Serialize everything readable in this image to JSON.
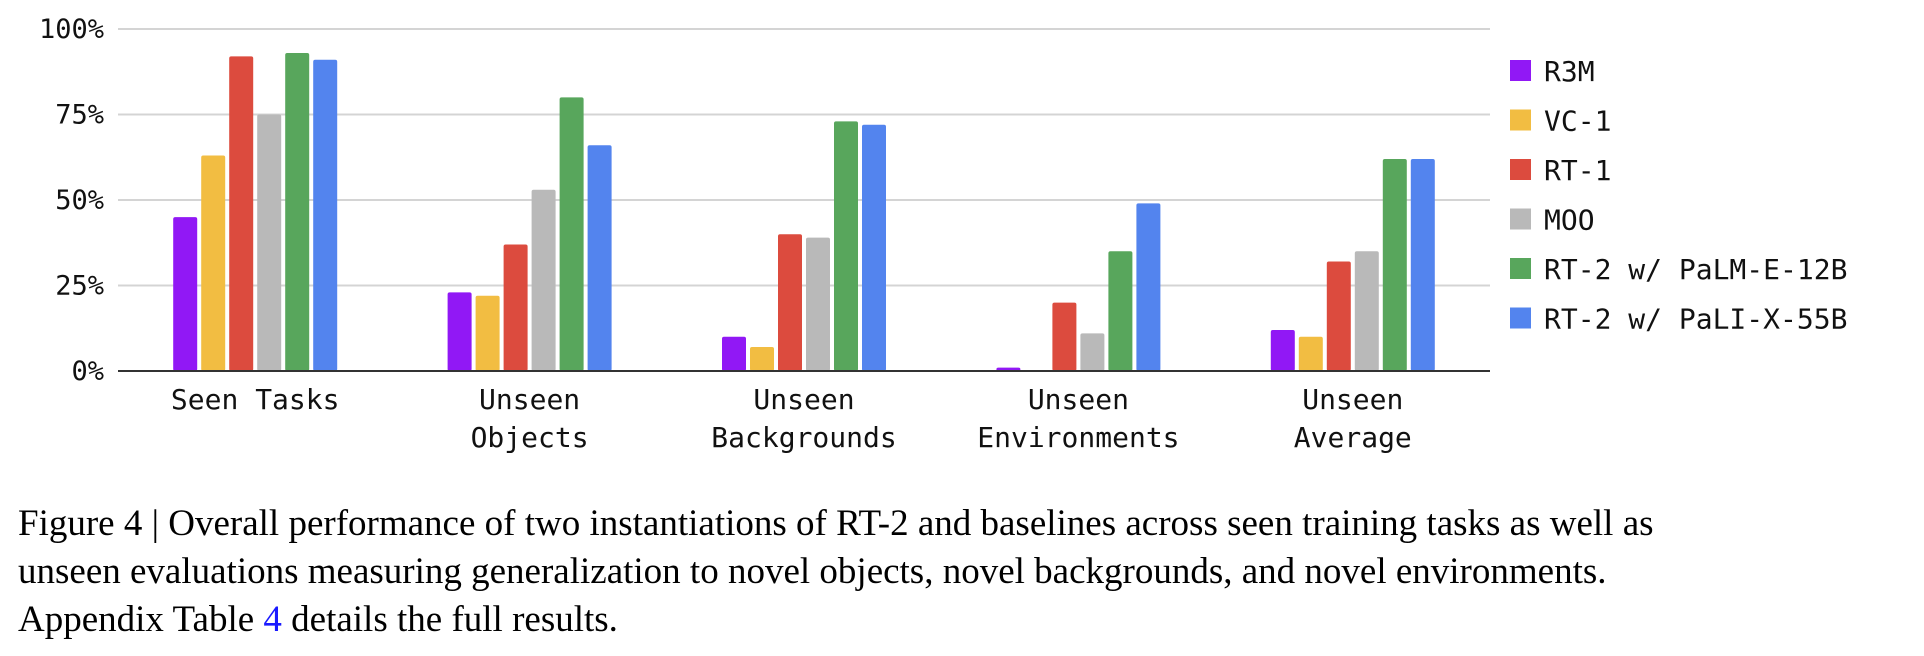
{
  "chart_data": {
    "type": "bar",
    "categories": [
      [
        "Seen Tasks"
      ],
      [
        "Unseen",
        "Objects"
      ],
      [
        "Unseen",
        "Backgrounds"
      ],
      [
        "Unseen",
        "Environments"
      ],
      [
        "Unseen",
        "Average"
      ]
    ],
    "series": [
      {
        "name": "R3M",
        "color": "#9118f5",
        "values": [
          45,
          23,
          10,
          1,
          12
        ]
      },
      {
        "name": "VC-1",
        "color": "#f2bd42",
        "values": [
          63,
          22,
          7,
          0,
          10
        ]
      },
      {
        "name": "RT-1",
        "color": "#dc4b3e",
        "values": [
          92,
          37,
          40,
          20,
          32
        ]
      },
      {
        "name": "MOO",
        "color": "#b9b9b9",
        "values": [
          75,
          53,
          39,
          11,
          35
        ]
      },
      {
        "name": "RT-2 w/ PaLM-E-12B",
        "color": "#58a65c",
        "values": [
          93,
          80,
          73,
          35,
          62
        ]
      },
      {
        "name": "RT-2 w/ PaLI-X-55B",
        "color": "#5384ee",
        "values": [
          91,
          66,
          72,
          49,
          62
        ]
      }
    ],
    "yticks": [
      "0%",
      "25%",
      "50%",
      "75%",
      "100%"
    ],
    "ylim": [
      0,
      100
    ],
    "grid": true,
    "legend_position": "right"
  },
  "caption": {
    "line1": "Figure 4 | Overall performance of two instantiations of RT-2 and baselines across seen training tasks as well as",
    "line2": "unseen evaluations measuring generalization to novel objects, novel backgrounds, and novel environments.",
    "line3_before": "Appendix Table ",
    "line3_ref": "4",
    "line3_after": " details the full results."
  }
}
